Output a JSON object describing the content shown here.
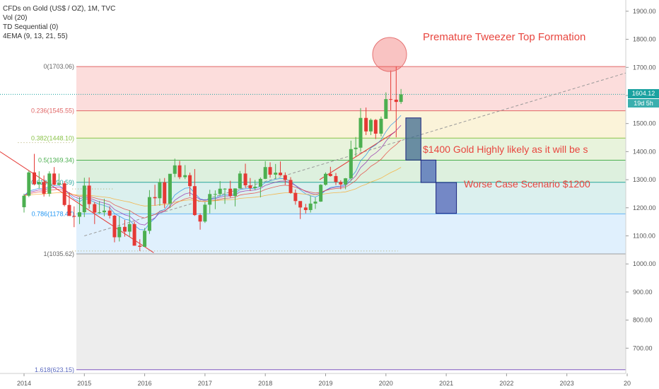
{
  "legend": {
    "title": "CFDs on Gold (US$ / OZ), 1M, TVC",
    "line2": "Vol (20)",
    "line3": "TD Sequential (0)",
    "line4": "4EMA (9, 13, 21, 55)"
  },
  "price_tags": {
    "last_price": "1604.12",
    "countdown": "19d 5h",
    "last_color": "#1aa2a0",
    "countdown_color": "#1aa2a0"
  },
  "annotations": [
    {
      "text": "Premature Tweezer Top Formation",
      "color": "#e8463f"
    },
    {
      "text": "$1400 Gold Highly likely as it will be s",
      "color": "#e8463f"
    },
    {
      "text": "Worse Case Scenario $1200",
      "color": "#e8463f"
    }
  ],
  "chart_data": {
    "type": "candlestick",
    "title": "CFDs on Gold (US$ / OZ), 1M, TVC",
    "y_axis": {
      "ticks": [
        700,
        800,
        900,
        1000,
        1100,
        1200,
        1300,
        1400,
        1500,
        1600,
        1700,
        1800,
        1900
      ],
      "tick_labels": [
        "700.00",
        "800.00",
        "900.00",
        "1000.00",
        "1100.00",
        "1200.00",
        "1300.00",
        "1400.00",
        "1500.00",
        "1600.00",
        "1700.00",
        "1800.00",
        "1900.00"
      ],
      "range": [
        610,
        1940
      ]
    },
    "x_axis": {
      "ticks": [
        "2014",
        "2015",
        "2016",
        "2017",
        "2018",
        "2019",
        "2020",
        "2021",
        "2022",
        "2023",
        "20"
      ],
      "range_years": [
        2013.8,
        2024.0
      ]
    },
    "fibonacci": [
      {
        "label": "0(1703.06)",
        "value": 1703.06,
        "line_color": "#e06666",
        "label_color": "#666666"
      },
      {
        "label": "0.236(1545.55)",
        "value": 1545.55,
        "line_color": "#e06666",
        "label_color": "#e06666"
      },
      {
        "label": "0.382(1448.10)",
        "value": 1448.1,
        "line_color": "#8bc34a",
        "label_color": "#8bc34a"
      },
      {
        "label": "0.5(1369.34)",
        "value": 1369.34,
        "line_color": "#4caf50",
        "label_color": "#4caf50"
      },
      {
        "label": "0.618(1290.59)",
        "value": 1290.59,
        "line_color": "#26a69a",
        "label_color": "#26a69a"
      },
      {
        "label": "0.786(1178.47)",
        "value": 1178.47,
        "line_color": "#64b5f6",
        "label_color": "#2196f3"
      },
      {
        "label": "1(1035.62)",
        "value": 1035.62,
        "line_color": "#9e9e9e",
        "label_color": "#666666"
      },
      {
        "label": "1.618(623.15)",
        "value": 623.15,
        "line_color": "#7e57c2",
        "label_color": "#5c6bc0"
      }
    ],
    "fib_band_colors": [
      "rgba(239,83,80,0.20)",
      "rgba(236,200,80,0.22)",
      "rgba(174,213,129,0.28)",
      "rgba(102,187,106,0.22)",
      "rgba(77,182,172,0.20)",
      "rgba(144,202,249,0.28)",
      "rgba(189,189,189,0.28)",
      "rgba(149,117,205,0.28)"
    ],
    "candles": [
      [
        2014.0,
        1202,
        1250,
        1183,
        1243
      ],
      [
        2014.08,
        1243,
        1332,
        1238,
        1326
      ],
      [
        2014.17,
        1326,
        1392,
        1280,
        1284
      ],
      [
        2014.25,
        1284,
        1330,
        1268,
        1292
      ],
      [
        2014.33,
        1292,
        1315,
        1240,
        1250
      ],
      [
        2014.42,
        1250,
        1330,
        1240,
        1322
      ],
      [
        2014.5,
        1322,
        1345,
        1280,
        1282
      ],
      [
        2014.58,
        1282,
        1322,
        1280,
        1287
      ],
      [
        2014.67,
        1287,
        1295,
        1205,
        1210
      ],
      [
        2014.75,
        1210,
        1255,
        1183,
        1171
      ],
      [
        2014.83,
        1171,
        1205,
        1131,
        1168
      ],
      [
        2014.92,
        1168,
        1238,
        1142,
        1184
      ],
      [
        2015.0,
        1184,
        1307,
        1167,
        1279
      ],
      [
        2015.08,
        1279,
        1308,
        1197,
        1213
      ],
      [
        2015.17,
        1213,
        1220,
        1142,
        1183
      ],
      [
        2015.25,
        1183,
        1224,
        1178,
        1184
      ],
      [
        2015.33,
        1184,
        1232,
        1170,
        1190
      ],
      [
        2015.42,
        1190,
        1205,
        1162,
        1172
      ],
      [
        2015.5,
        1172,
        1175,
        1077,
        1095
      ],
      [
        2015.58,
        1095,
        1170,
        1080,
        1132
      ],
      [
        2015.67,
        1132,
        1157,
        1097,
        1115
      ],
      [
        2015.75,
        1115,
        1191,
        1098,
        1142
      ],
      [
        2015.83,
        1142,
        1150,
        1065,
        1065
      ],
      [
        2015.92,
        1065,
        1088,
        1046,
        1061
      ],
      [
        2016.0,
        1061,
        1128,
        1061,
        1118
      ],
      [
        2016.08,
        1118,
        1263,
        1107,
        1238
      ],
      [
        2016.17,
        1238,
        1282,
        1208,
        1234
      ],
      [
        2016.25,
        1234,
        1304,
        1207,
        1291
      ],
      [
        2016.33,
        1291,
        1306,
        1199,
        1215
      ],
      [
        2016.42,
        1215,
        1316,
        1199,
        1321
      ],
      [
        2016.5,
        1321,
        1375,
        1309,
        1351
      ],
      [
        2016.58,
        1351,
        1367,
        1302,
        1309
      ],
      [
        2016.67,
        1309,
        1352,
        1302,
        1316
      ],
      [
        2016.75,
        1316,
        1325,
        1241,
        1277
      ],
      [
        2016.83,
        1277,
        1338,
        1171,
        1174
      ],
      [
        2016.92,
        1174,
        1180,
        1122,
        1151
      ],
      [
        2017.0,
        1151,
        1220,
        1146,
        1211
      ],
      [
        2017.08,
        1211,
        1264,
        1180,
        1249
      ],
      [
        2017.17,
        1249,
        1262,
        1195,
        1249
      ],
      [
        2017.25,
        1249,
        1295,
        1242,
        1268
      ],
      [
        2017.33,
        1268,
        1270,
        1214,
        1268
      ],
      [
        2017.42,
        1268,
        1296,
        1236,
        1242
      ],
      [
        2017.5,
        1242,
        1269,
        1205,
        1269
      ],
      [
        2017.58,
        1269,
        1331,
        1267,
        1322
      ],
      [
        2017.67,
        1322,
        1357,
        1271,
        1280
      ],
      [
        2017.75,
        1280,
        1306,
        1260,
        1270
      ],
      [
        2017.83,
        1270,
        1299,
        1264,
        1275
      ],
      [
        2017.92,
        1275,
        1308,
        1237,
        1303
      ],
      [
        2018.0,
        1303,
        1366,
        1302,
        1345
      ],
      [
        2018.08,
        1345,
        1362,
        1307,
        1318
      ],
      [
        2018.17,
        1318,
        1356,
        1303,
        1325
      ],
      [
        2018.25,
        1325,
        1365,
        1314,
        1316
      ],
      [
        2018.33,
        1316,
        1326,
        1282,
        1299
      ],
      [
        2018.42,
        1299,
        1309,
        1250,
        1253
      ],
      [
        2018.5,
        1253,
        1265,
        1211,
        1224
      ],
      [
        2018.58,
        1224,
        1223,
        1160,
        1201
      ],
      [
        2018.67,
        1201,
        1214,
        1180,
        1192
      ],
      [
        2018.75,
        1192,
        1243,
        1183,
        1215
      ],
      [
        2018.83,
        1215,
        1237,
        1196,
        1222
      ],
      [
        2018.92,
        1222,
        1284,
        1221,
        1282
      ],
      [
        2019.0,
        1282,
        1326,
        1279,
        1321
      ],
      [
        2019.08,
        1321,
        1346,
        1311,
        1313
      ],
      [
        2019.17,
        1313,
        1324,
        1281,
        1292
      ],
      [
        2019.25,
        1292,
        1298,
        1266,
        1283
      ],
      [
        2019.33,
        1283,
        1306,
        1266,
        1305
      ],
      [
        2019.42,
        1305,
        1439,
        1297,
        1409
      ],
      [
        2019.5,
        1409,
        1452,
        1382,
        1414
      ],
      [
        2019.58,
        1414,
        1555,
        1400,
        1520
      ],
      [
        2019.67,
        1520,
        1557,
        1459,
        1472
      ],
      [
        2019.75,
        1472,
        1518,
        1459,
        1513
      ],
      [
        2019.83,
        1513,
        1516,
        1445,
        1464
      ],
      [
        2019.92,
        1464,
        1525,
        1454,
        1517
      ],
      [
        2020.0,
        1517,
        1611,
        1517,
        1587
      ],
      [
        2020.08,
        1587,
        1689,
        1547,
        1585
      ],
      [
        2020.17,
        1585,
        1703,
        1451,
        1577
      ],
      [
        2020.25,
        1577,
        1623,
        1570,
        1604
      ]
    ],
    "colors": {
      "up": "#4caf50",
      "down": "#e53935"
    },
    "projection_boxes": [
      {
        "x_start": 2020.33,
        "x_end": 2020.58,
        "y_top": 1520,
        "y_bottom": 1370,
        "fill": "#3f6b8f"
      },
      {
        "x_start": 2020.58,
        "x_end": 2020.83,
        "y_top": 1370,
        "y_bottom": 1290,
        "fill": "#4a6ab5"
      },
      {
        "x_start": 2020.83,
        "x_end": 2021.17,
        "y_top": 1290,
        "y_bottom": 1180,
        "fill": "#5266b8"
      }
    ]
  }
}
